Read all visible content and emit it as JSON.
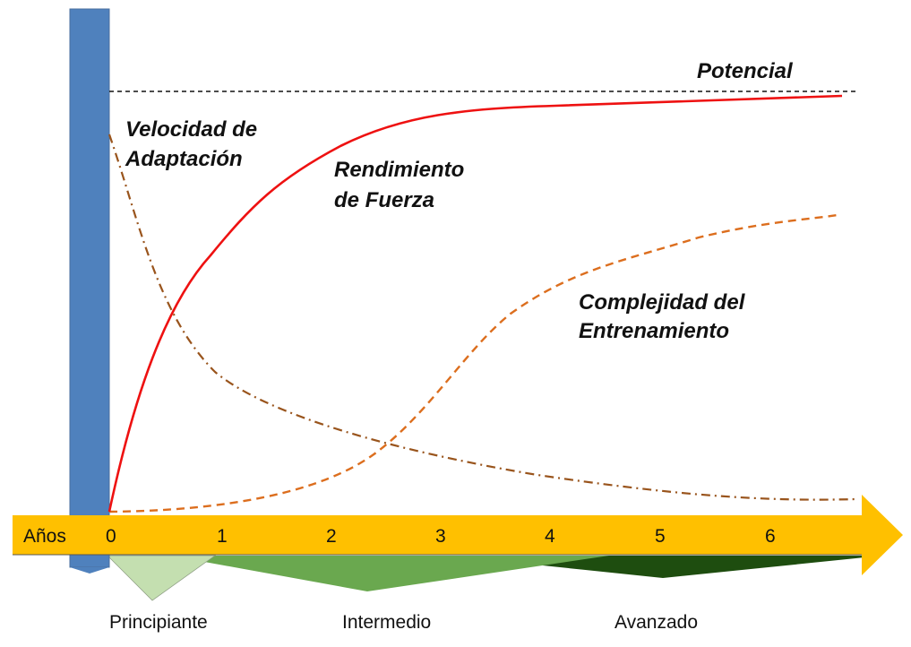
{
  "labels": {
    "potencial": "Potencial",
    "velocidad": [
      "Velocidad de",
      "Adaptación"
    ],
    "rendimiento": [
      "Rendimiento",
      "de Fuerza"
    ],
    "complejidad": [
      "Complejidad del",
      "Entrenamiento"
    ]
  },
  "axis": {
    "name": "Años",
    "ticks": [
      "0",
      "1",
      "2",
      "3",
      "4",
      "5",
      "6"
    ]
  },
  "levels": [
    "Principiante",
    "Intermedio",
    "Avanzado"
  ],
  "colors": {
    "bar": "#4f81bd",
    "arrow": "#ffc000",
    "rendimiento": "#ee1111",
    "velocidad": "#99541c",
    "complejidad": "#dc6e1e",
    "principiante": "#c4dfb0",
    "intermedio": "#6aa84f",
    "avanzado": "#1e4d0f"
  }
}
